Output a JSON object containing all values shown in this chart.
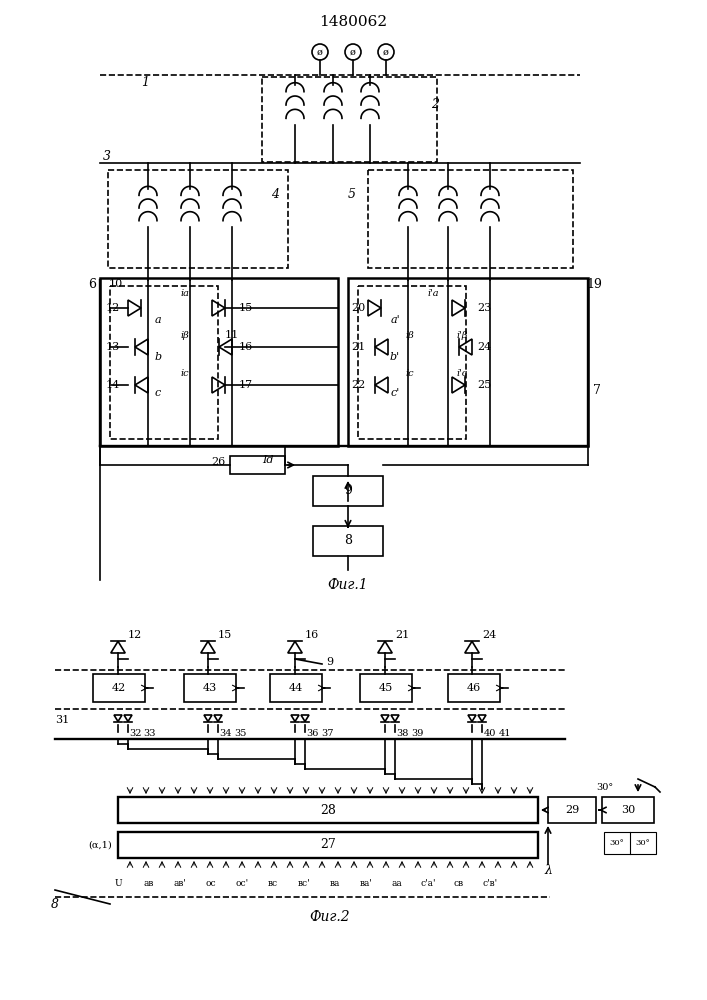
{
  "title": "1480062",
  "fig1_label": "Фиг.1",
  "fig2_label": "Фиг.2",
  "background": "#ffffff",
  "line_color": "#000000",
  "line_width": 1.2,
  "fig_width": 7.07,
  "fig_height": 10.0
}
